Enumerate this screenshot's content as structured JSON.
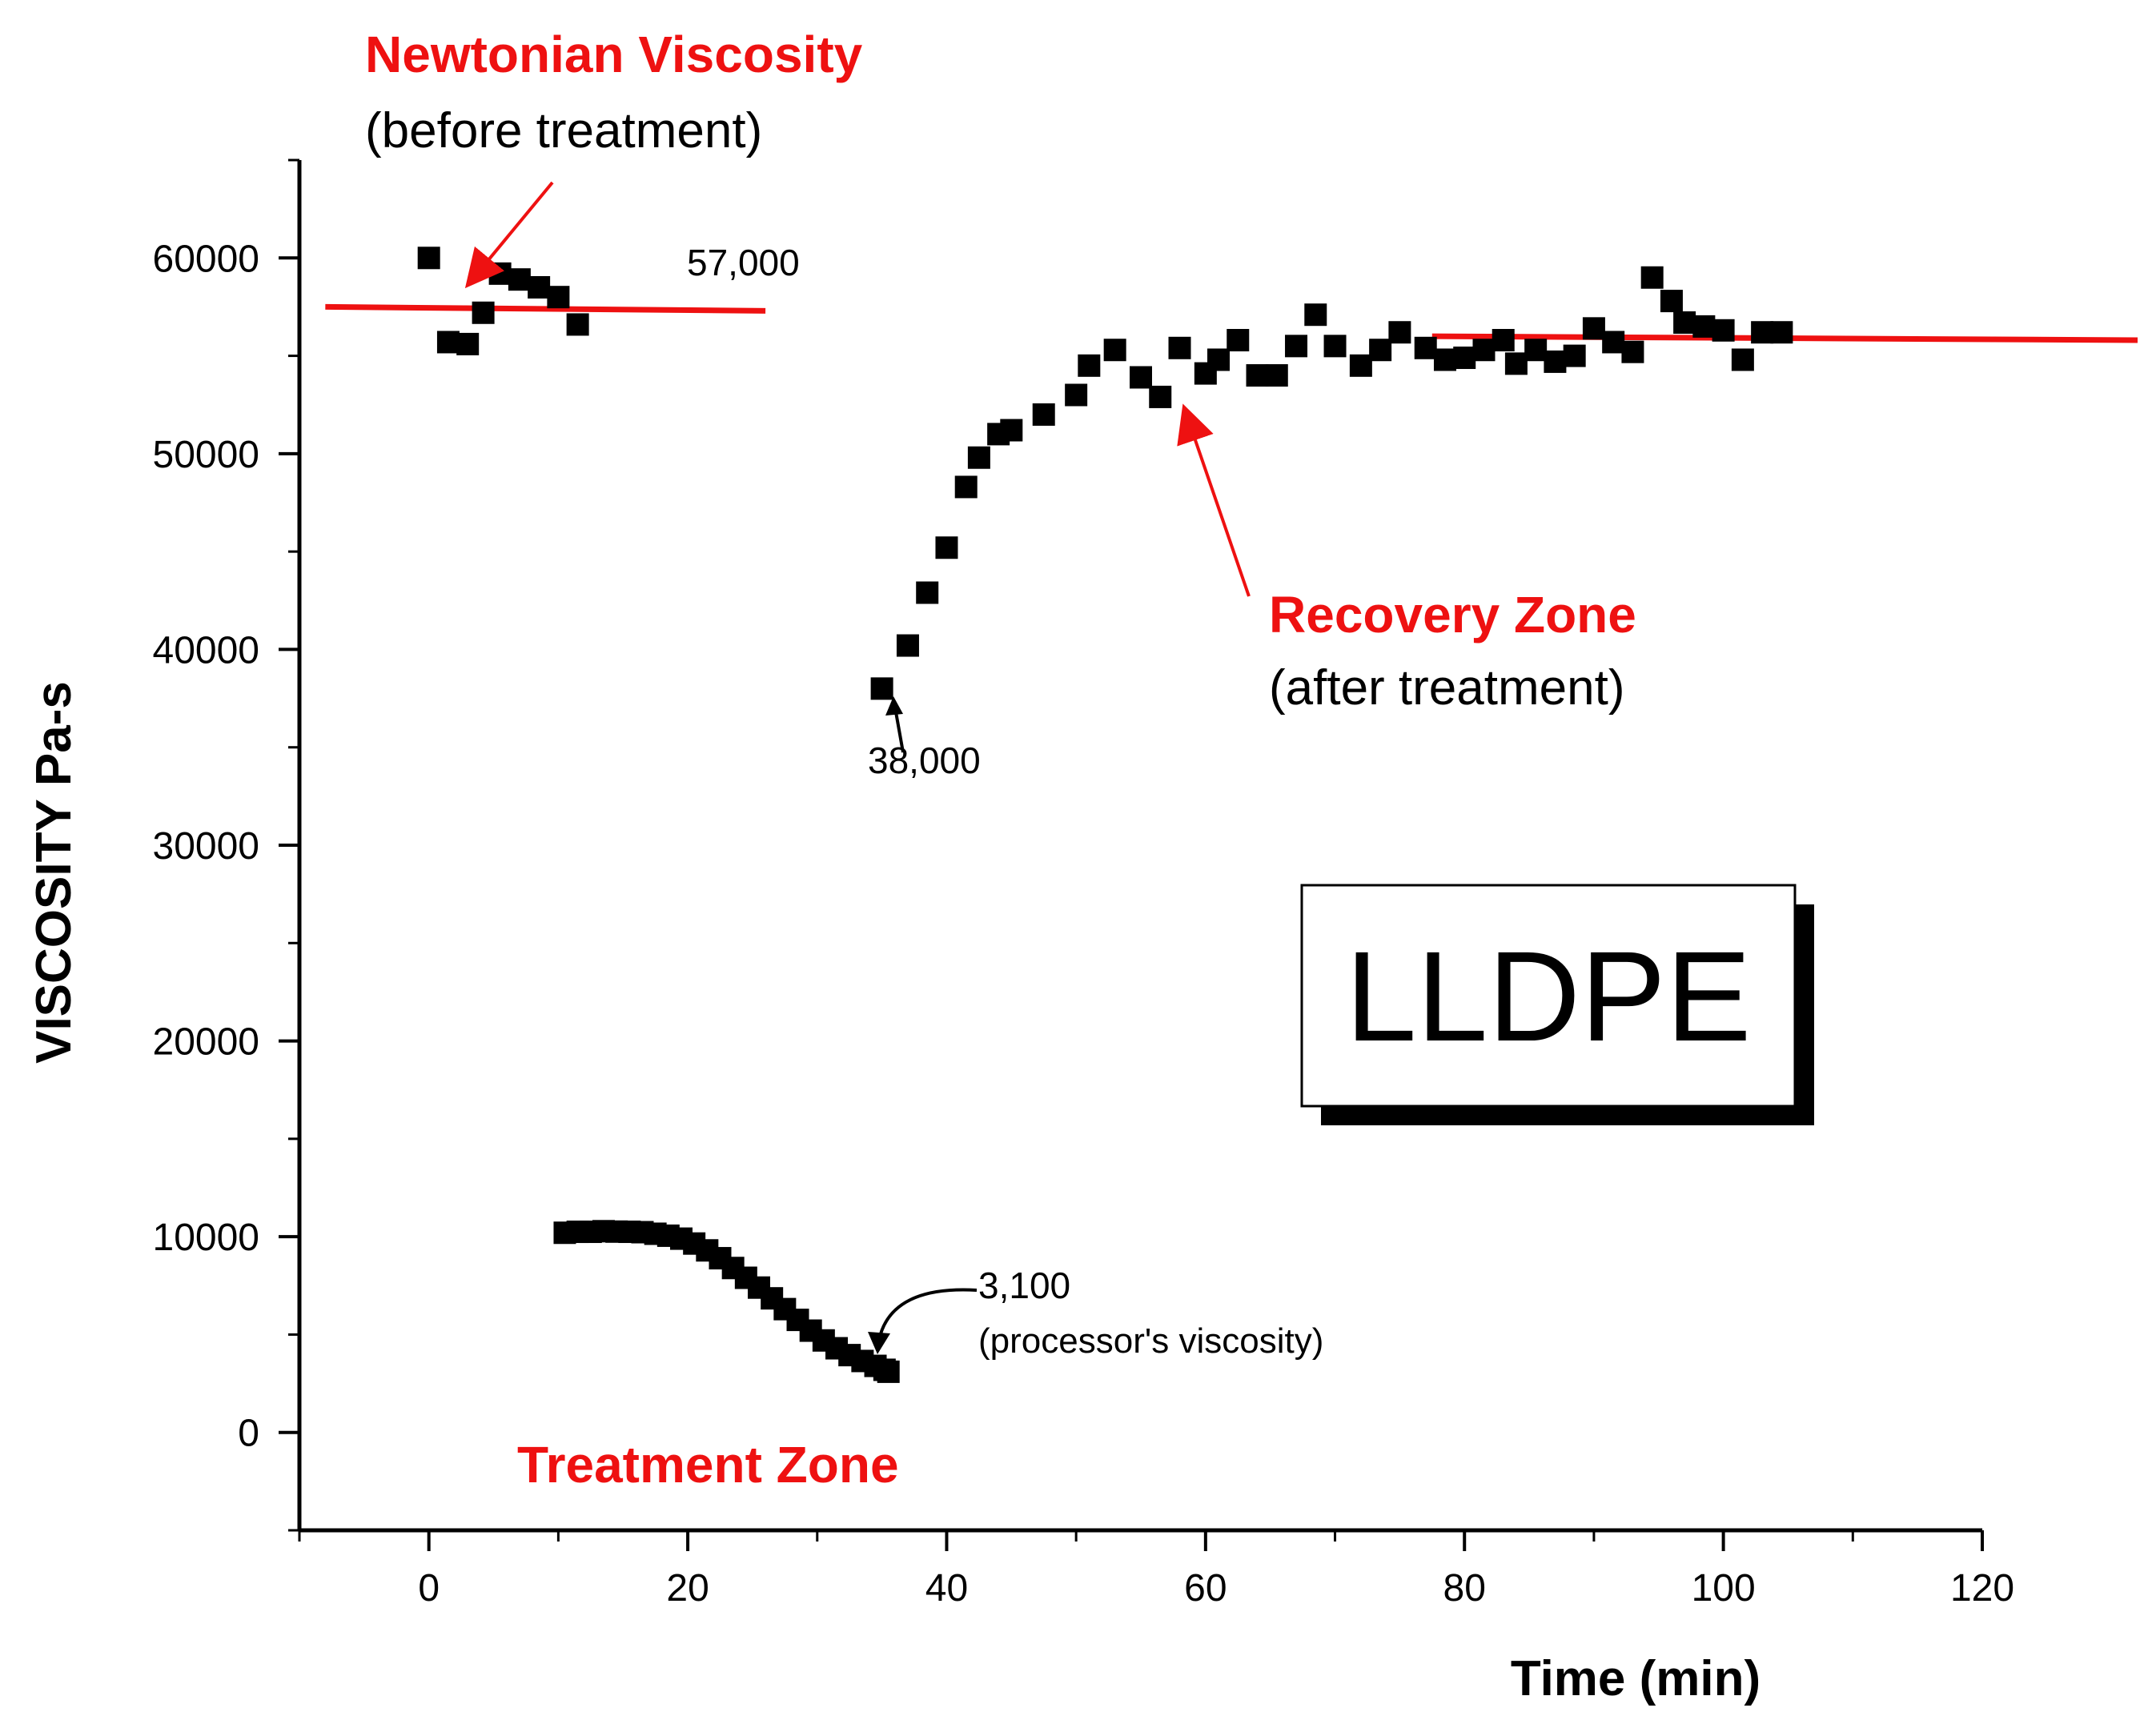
{
  "chart_data": {
    "type": "scatter",
    "xlabel": "Time (min)",
    "ylabel": "VISCOSITY Pa-s",
    "xlim": [
      -10,
      120
    ],
    "ylim": [
      -5000,
      65000
    ],
    "xticks": [
      0,
      20,
      40,
      60,
      80,
      100,
      120
    ],
    "yticks": [
      0,
      10000,
      20000,
      30000,
      40000,
      50000,
      60000
    ],
    "grid": false,
    "legend": "none",
    "marker_color": "#000000",
    "line_color": "#ee1111",
    "series": [
      {
        "values": [
          [
            0,
            60000
          ],
          [
            1.5,
            55700
          ],
          [
            3,
            55600
          ],
          [
            4.2,
            57200
          ],
          [
            5.5,
            59200
          ],
          [
            7,
            58900
          ],
          [
            8.5,
            58500
          ],
          [
            10,
            58000
          ],
          [
            11.5,
            56600
          ],
          [
            10.5,
            10200
          ],
          [
            11.5,
            10250
          ],
          [
            12.5,
            10250
          ],
          [
            13.5,
            10280
          ],
          [
            14.5,
            10260
          ],
          [
            15.5,
            10250
          ],
          [
            16.5,
            10230
          ],
          [
            17.5,
            10150
          ],
          [
            18.5,
            10050
          ],
          [
            19.5,
            9900
          ],
          [
            20.5,
            9650
          ],
          [
            21.5,
            9300
          ],
          [
            22.5,
            8900
          ],
          [
            23.5,
            8400
          ],
          [
            24.5,
            7900
          ],
          [
            25.5,
            7400
          ],
          [
            26.5,
            6850
          ],
          [
            27.5,
            6300
          ],
          [
            28.5,
            5750
          ],
          [
            29.5,
            5200
          ],
          [
            30.5,
            4700
          ],
          [
            31.5,
            4300
          ],
          [
            32.5,
            3950
          ],
          [
            33.5,
            3650
          ],
          [
            34.5,
            3400
          ],
          [
            35.2,
            3200
          ],
          [
            35.5,
            3100
          ],
          [
            35,
            38000
          ],
          [
            37,
            40200
          ],
          [
            38.5,
            42900
          ],
          [
            40,
            45200
          ],
          [
            41.5,
            48300
          ],
          [
            42.5,
            49800
          ],
          [
            44,
            51000
          ],
          [
            45,
            51200
          ],
          [
            47.5,
            52000
          ],
          [
            50,
            53000
          ],
          [
            51,
            54500
          ],
          [
            53,
            55300
          ],
          [
            55,
            53900
          ],
          [
            56.5,
            52900
          ],
          [
            58,
            55400
          ],
          [
            60,
            54100
          ],
          [
            61,
            54800
          ],
          [
            62.5,
            55800
          ],
          [
            64,
            54000
          ],
          [
            65.5,
            54000
          ],
          [
            67,
            55500
          ],
          [
            68.5,
            57100
          ],
          [
            70,
            55500
          ],
          [
            72,
            54500
          ],
          [
            73.5,
            55300
          ],
          [
            75,
            56200
          ],
          [
            77,
            55400
          ],
          [
            78.5,
            54800
          ],
          [
            80,
            54900
          ],
          [
            81.5,
            55300
          ],
          [
            83,
            55800
          ],
          [
            84,
            54600
          ],
          [
            85.5,
            55300
          ],
          [
            87,
            54700
          ],
          [
            88.5,
            55000
          ],
          [
            90,
            56400
          ],
          [
            91.5,
            55700
          ],
          [
            93,
            55200
          ],
          [
            94.5,
            59000
          ],
          [
            96,
            57800
          ],
          [
            97,
            56700
          ],
          [
            98.5,
            56500
          ],
          [
            100,
            56300
          ],
          [
            101.5,
            54800
          ],
          [
            103,
            56200
          ],
          [
            104.5,
            56200
          ]
        ]
      }
    ],
    "reference_lines": [
      {
        "from": [
          -8,
          57500
        ],
        "to": [
          26,
          57300
        ]
      },
      {
        "from": [
          77.5,
          56000
        ],
        "to": [
          132,
          55800
        ]
      }
    ],
    "annotations": {
      "newtonian_title": "Newtonian Viscosity",
      "newtonian_sub": "(before treatment)",
      "value_57000": "57,000",
      "recovery_title": "Recovery Zone",
      "recovery_sub": "(after treatment)",
      "value_38000": "38,000",
      "value_3100": "3,100",
      "processor_note": "(processor's viscosity)",
      "treatment_title": "Treatment Zone",
      "box_label": "LLDPE"
    }
  }
}
